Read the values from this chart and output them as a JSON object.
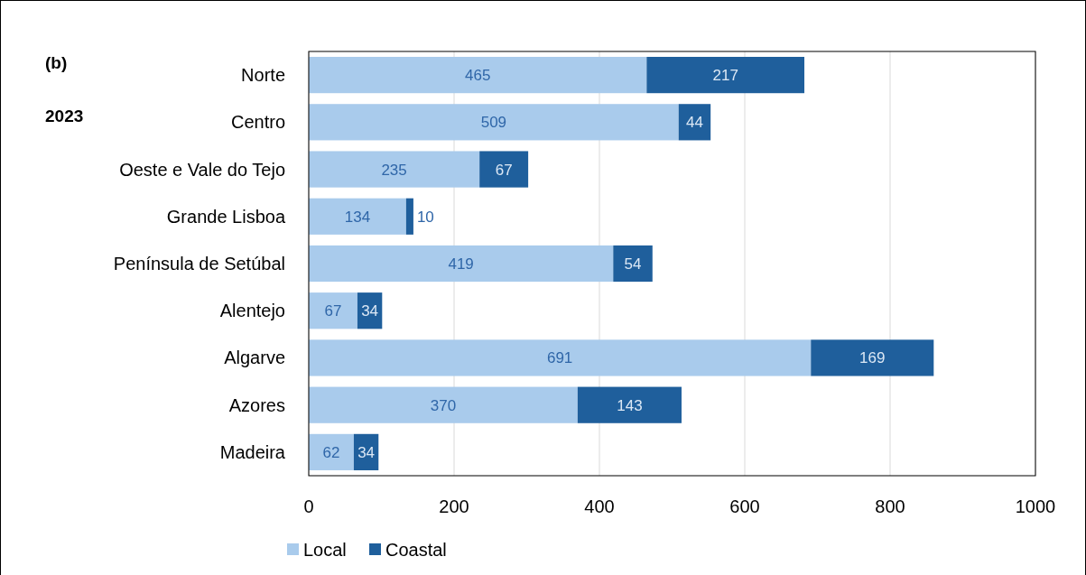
{
  "chart_data": {
    "type": "bar",
    "orientation": "horizontal",
    "stacked": true,
    "categories": [
      "Norte",
      "Centro",
      "Oeste e Vale do Tejo",
      "Grande Lisboa",
      "Península de Setúbal",
      "Alentejo",
      "Algarve",
      "Azores",
      "Madeira"
    ],
    "series": [
      {
        "name": "Local",
        "color": "#a9cbec",
        "values": [
          465,
          509,
          235,
          134,
          419,
          67,
          691,
          370,
          62
        ]
      },
      {
        "name": "Coastal",
        "color": "#1f5f9c",
        "values": [
          217,
          44,
          67,
          10,
          54,
          34,
          169,
          143,
          34
        ]
      }
    ],
    "xlim": [
      0,
      1000
    ],
    "xticks": [
      0,
      200,
      400,
      600,
      800,
      1000
    ],
    "grid": "x",
    "legend": "bottom",
    "data_labels": true,
    "annotations": [
      "(b)",
      "2023"
    ]
  }
}
